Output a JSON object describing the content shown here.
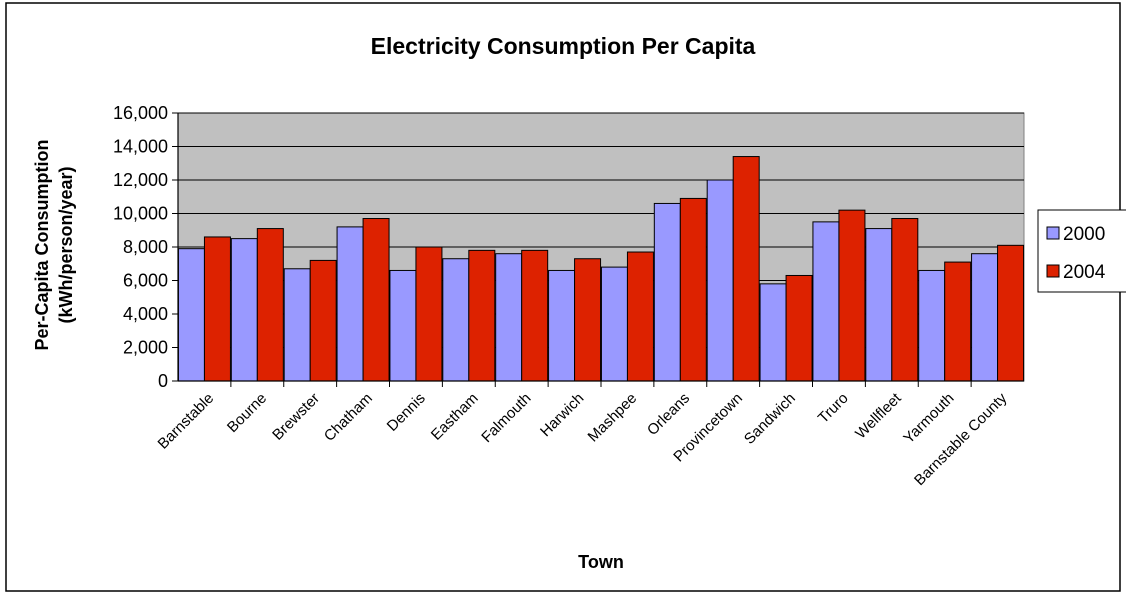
{
  "chart_data": {
    "type": "bar",
    "title": "Electricity Consumption Per Capita",
    "xlabel": "Town",
    "ylabel_line1": "Per-Capita Consumption",
    "ylabel_line2": "(kWh/person/year)",
    "ylim": [
      0,
      16000
    ],
    "yticks": [
      "0",
      "2,000",
      "4,000",
      "6,000",
      "8,000",
      "10,000",
      "12,000",
      "14,000",
      "16,000"
    ],
    "ytick_values": [
      0,
      2000,
      4000,
      6000,
      8000,
      10000,
      12000,
      14000,
      16000
    ],
    "grid": true,
    "legend_position": "right",
    "categories": [
      "Barnstable",
      "Bourne",
      "Brewster",
      "Chatham",
      "Dennis",
      "Eastham",
      "Falmouth",
      "Harwich",
      "Mashpee",
      "Orleans",
      "Provincetown",
      "Sandwich",
      "Truro",
      "Wellfleet",
      "Yarmouth",
      "Barnstable County"
    ],
    "series": [
      {
        "name": "2000",
        "color": "#9999ff",
        "values": [
          7900,
          8500,
          6700,
          9200,
          6600,
          7300,
          7600,
          6600,
          6800,
          10600,
          12000,
          5800,
          9500,
          9100,
          6600,
          7600
        ]
      },
      {
        "name": "2004",
        "color": "#dd2200",
        "values": [
          8600,
          9100,
          7200,
          9700,
          8000,
          7800,
          7800,
          7300,
          7700,
          10900,
          13400,
          6300,
          10200,
          9700,
          7100,
          8100
        ]
      }
    ],
    "plot_background": "#c0c0c0"
  }
}
